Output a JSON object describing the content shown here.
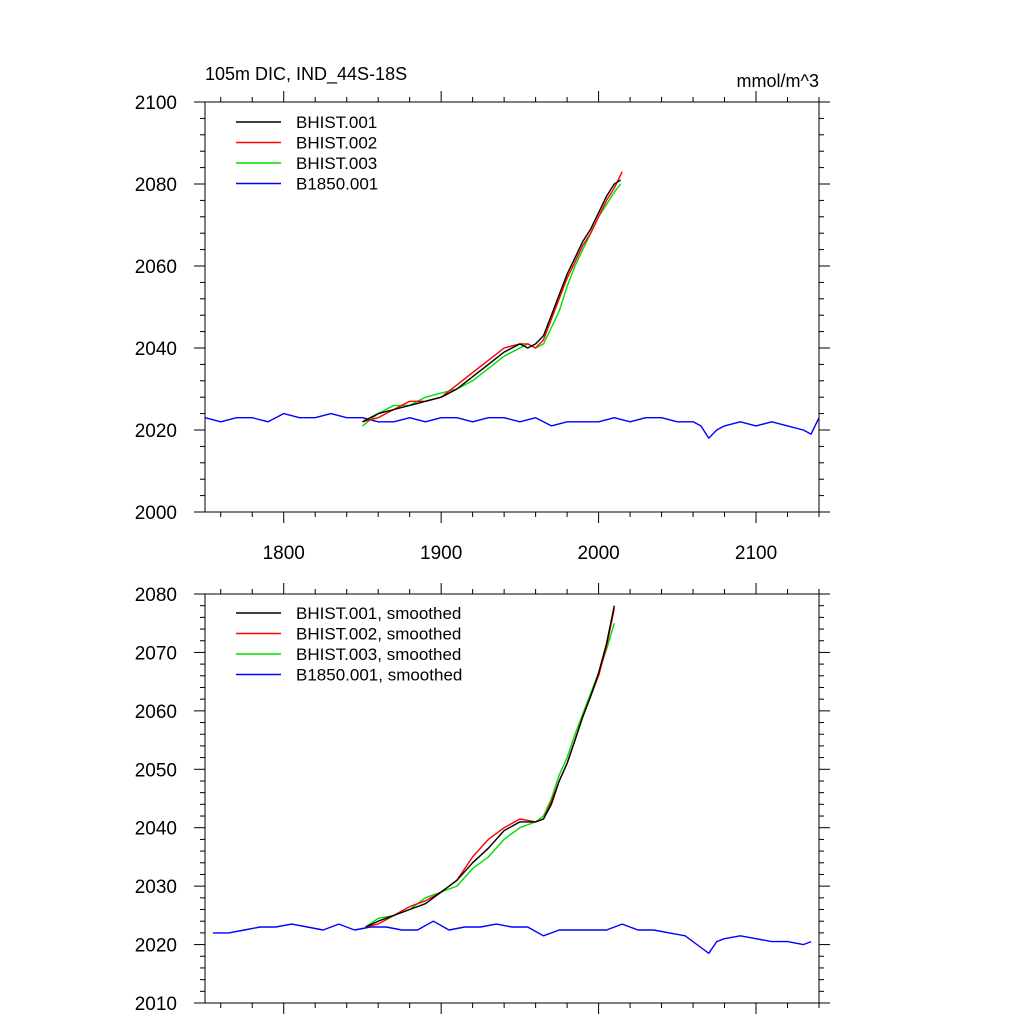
{
  "chart_data": [
    {
      "type": "line",
      "title": "105m DIC, IND_44S-18S",
      "units": "mmol/m^3",
      "xlim": [
        1750,
        2140
      ],
      "ylim": [
        2000,
        2100
      ],
      "xticks": [
        1800,
        1900,
        2000,
        2100
      ],
      "yticks": [
        2000,
        2020,
        2040,
        2060,
        2080,
        2100
      ],
      "series": [
        {
          "name": "BHIST.001",
          "color": "#000000",
          "x": [
            1850,
            1860,
            1870,
            1880,
            1890,
            1900,
            1910,
            1920,
            1930,
            1940,
            1950,
            1955,
            1960,
            1965,
            1970,
            1975,
            1980,
            1985,
            1990,
            1995,
            2000,
            2005,
            2010,
            2014
          ],
          "y": [
            2022,
            2024,
            2025,
            2026,
            2027,
            2028,
            2030,
            2033,
            2036,
            2039,
            2041,
            2040,
            2041,
            2043,
            2048,
            2053,
            2058,
            2062,
            2066,
            2069,
            2073,
            2077,
            2080,
            2081
          ]
        },
        {
          "name": "BHIST.002",
          "color": "#ff0000",
          "x": [
            1850,
            1860,
            1870,
            1880,
            1890,
            1900,
            1910,
            1920,
            1930,
            1940,
            1950,
            1955,
            1960,
            1965,
            1970,
            1975,
            1980,
            1985,
            1990,
            1995,
            2000,
            2005,
            2010,
            2015
          ],
          "y": [
            2022,
            2023,
            2025,
            2027,
            2027,
            2028,
            2031,
            2034,
            2037,
            2040,
            2041,
            2041,
            2040,
            2042,
            2047,
            2052,
            2057,
            2061,
            2065,
            2068,
            2072,
            2076,
            2079,
            2083
          ]
        },
        {
          "name": "BHIST.003",
          "color": "#00dd00",
          "x": [
            1850,
            1860,
            1870,
            1880,
            1890,
            1900,
            1910,
            1920,
            1930,
            1940,
            1950,
            1955,
            1960,
            1965,
            1970,
            1975,
            1980,
            1985,
            1990,
            1995,
            2000,
            2005,
            2010,
            2014
          ],
          "y": [
            2021,
            2024,
            2026,
            2026,
            2028,
            2029,
            2030,
            2032,
            2035,
            2038,
            2040,
            2041,
            2040,
            2041,
            2045,
            2049,
            2055,
            2060,
            2064,
            2068,
            2072,
            2075,
            2078,
            2080
          ]
        },
        {
          "name": "B1850.001",
          "color": "#0000ff",
          "x": [
            1750,
            1760,
            1770,
            1780,
            1790,
            1800,
            1810,
            1820,
            1830,
            1840,
            1850,
            1860,
            1870,
            1880,
            1890,
            1900,
            1910,
            1920,
            1930,
            1940,
            1950,
            1960,
            1970,
            1980,
            1990,
            2000,
            2010,
            2020,
            2030,
            2040,
            2050,
            2060,
            2065,
            2070,
            2075,
            2080,
            2090,
            2100,
            2110,
            2120,
            2130,
            2135,
            2140
          ],
          "y": [
            2023,
            2022,
            2023,
            2023,
            2022,
            2024,
            2023,
            2023,
            2024,
            2023,
            2023,
            2022,
            2022,
            2023,
            2022,
            2023,
            2023,
            2022,
            2023,
            2023,
            2022,
            2023,
            2021,
            2022,
            2022,
            2022,
            2023,
            2022,
            2023,
            2023,
            2022,
            2022,
            2021,
            2018,
            2020,
            2021,
            2022,
            2021,
            2022,
            2021,
            2020,
            2019,
            2023
          ]
        }
      ]
    },
    {
      "type": "line",
      "title": "",
      "xlim": [
        1750,
        2140
      ],
      "ylim": [
        2010,
        2080
      ],
      "xticks": [
        1800,
        1900,
        2000,
        2100
      ],
      "yticks": [
        2010,
        2020,
        2030,
        2040,
        2050,
        2060,
        2070,
        2080
      ],
      "series": [
        {
          "name": "BHIST.001, smoothed",
          "color": "#000000",
          "x": [
            1852,
            1860,
            1870,
            1880,
            1890,
            1900,
            1910,
            1920,
            1930,
            1940,
            1950,
            1960,
            1965,
            1970,
            1975,
            1980,
            1985,
            1990,
            1995,
            2000,
            2005,
            2010
          ],
          "y": [
            2023,
            2024,
            2025,
            2026,
            2027,
            2029,
            2031,
            2034,
            2036.5,
            2039.5,
            2041,
            2041,
            2041.5,
            2044,
            2048,
            2051,
            2055,
            2059,
            2062.5,
            2066.5,
            2071.5,
            2078
          ]
        },
        {
          "name": "BHIST.002, smoothed",
          "color": "#ff0000",
          "x": [
            1852,
            1860,
            1870,
            1880,
            1890,
            1900,
            1910,
            1920,
            1930,
            1940,
            1950,
            1960,
            1965,
            1970,
            1975,
            1980,
            1985,
            1990,
            1995,
            2000,
            2005,
            2010
          ],
          "y": [
            2023,
            2023.5,
            2025,
            2026.5,
            2027.5,
            2029,
            2031,
            2035,
            2038,
            2040,
            2041.5,
            2041,
            2041.5,
            2044.5,
            2048,
            2051,
            2055,
            2059,
            2062.5,
            2066,
            2071,
            2077.5
          ]
        },
        {
          "name": "BHIST.003, smoothed",
          "color": "#00dd00",
          "x": [
            1852,
            1860,
            1870,
            1880,
            1890,
            1900,
            1910,
            1920,
            1930,
            1940,
            1950,
            1960,
            1965,
            1970,
            1975,
            1980,
            1985,
            1990,
            1995,
            2000,
            2005,
            2010
          ],
          "y": [
            2023,
            2024.5,
            2025,
            2026,
            2028,
            2029,
            2030,
            2033,
            2035,
            2038,
            2040,
            2041,
            2042,
            2045,
            2049,
            2052,
            2056,
            2059.5,
            2063,
            2066.5,
            2070.5,
            2075
          ]
        },
        {
          "name": "B1850.001, smoothed",
          "color": "#0000ff",
          "x": [
            1755,
            1765,
            1775,
            1785,
            1795,
            1805,
            1815,
            1825,
            1835,
            1845,
            1855,
            1865,
            1875,
            1885,
            1895,
            1905,
            1915,
            1925,
            1935,
            1945,
            1955,
            1965,
            1975,
            1985,
            1995,
            2005,
            2015,
            2025,
            2035,
            2045,
            2055,
            2065,
            2070,
            2075,
            2080,
            2090,
            2100,
            2110,
            2120,
            2130,
            2135
          ],
          "y": [
            2022,
            2022,
            2022.5,
            2023,
            2023,
            2023.5,
            2023,
            2022.5,
            2023.5,
            2022.5,
            2023,
            2023,
            2022.5,
            2022.5,
            2024,
            2022.5,
            2023,
            2023,
            2023.5,
            2023,
            2023,
            2021.5,
            2022.5,
            2022.5,
            2022.5,
            2022.5,
            2023.5,
            2022.5,
            2022.5,
            2022,
            2021.5,
            2019.5,
            2018.5,
            2020.5,
            2021,
            2021.5,
            2021,
            2020.5,
            2020.5,
            2020,
            2020.5
          ]
        }
      ]
    }
  ]
}
